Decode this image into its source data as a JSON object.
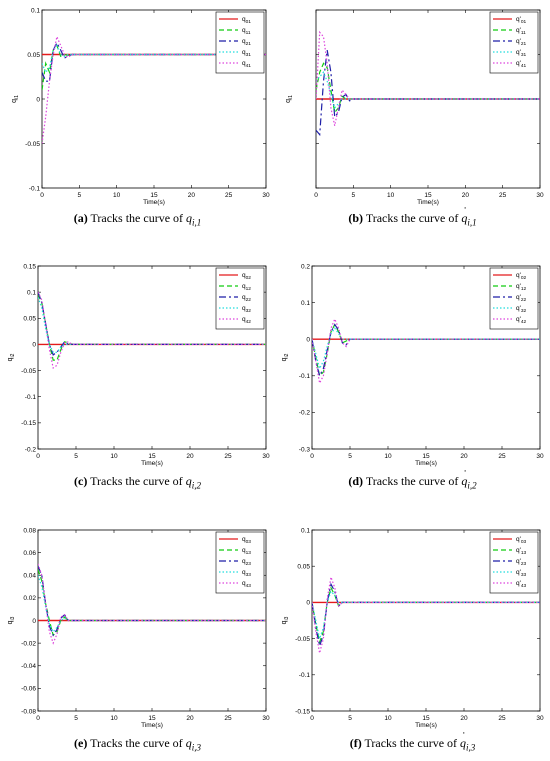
{
  "figure": {
    "panels": [
      {
        "letter": "(a)",
        "caption_text": "Tracks the curve of",
        "caption_math": "q",
        "caption_sub": "i,1",
        "caption_dot": false
      },
      {
        "letter": "(b)",
        "caption_text": "Tracks the curve of",
        "caption_math": "q",
        "caption_sub": "i,1",
        "caption_dot": true
      },
      {
        "letter": "(c)",
        "caption_text": "Tracks the curve of",
        "caption_math": "q",
        "caption_sub": "i,2",
        "caption_dot": false
      },
      {
        "letter": "(d)",
        "caption_text": "Tracks the curve of",
        "caption_math": "q",
        "caption_sub": "i,2",
        "caption_dot": true
      },
      {
        "letter": "(e)",
        "caption_text": "Tracks the curve of",
        "caption_math": "q",
        "caption_sub": "i,3",
        "caption_dot": false
      },
      {
        "letter": "(f)",
        "caption_text": "Tracks the curve of",
        "caption_math": "q",
        "caption_sub": "i,3",
        "caption_dot": true
      }
    ]
  },
  "chart_data": [
    {
      "type": "line",
      "xlabel": "Time(s)",
      "ylabel": "q_i1",
      "xlim": [
        0,
        30
      ],
      "ylim": [
        -0.1,
        0.1
      ],
      "xticks": [
        "0",
        "5",
        "10",
        "15",
        "20",
        "25",
        "30"
      ],
      "yticks": [
        "-0.1",
        "-0.05",
        "0",
        "0.05",
        "0.1"
      ],
      "ytick_values": [
        -0.1,
        -0.05,
        0,
        0.05,
        0.1
      ],
      "legend_position": "top-right",
      "grid": false,
      "series": [
        {
          "name": "q_01",
          "color": "#e41a1c",
          "dash": "solid",
          "x": [
            0,
            30
          ],
          "y": [
            0.05,
            0.05
          ]
        },
        {
          "name": "q_11",
          "color": "#11cc11",
          "dash": "dashed",
          "x": [
            0,
            0.5,
            1,
            1.5,
            2,
            2.5,
            3,
            3.5,
            4,
            30
          ],
          "y": [
            0.01,
            0.04,
            0.03,
            0.055,
            0.06,
            0.048,
            0.05,
            0.049,
            0.05,
            0.05
          ]
        },
        {
          "name": "q_21",
          "color": "#1f1fa8",
          "dash": "dashdot",
          "x": [
            0,
            0.5,
            1,
            1.5,
            2,
            2.5,
            3,
            3.5,
            4,
            30
          ],
          "y": [
            0.03,
            0.02,
            0.02,
            0.055,
            0.063,
            0.055,
            0.046,
            0.048,
            0.05,
            0.05
          ]
        },
        {
          "name": "q_31",
          "color": "#22dddd",
          "dash": "dotted",
          "x": [
            0,
            0.5,
            1,
            1.5,
            2,
            2.5,
            3,
            3.5,
            4,
            30
          ],
          "y": [
            0.04,
            0.03,
            0.035,
            0.055,
            0.06,
            0.05,
            0.048,
            0.05,
            0.05,
            0.05
          ]
        },
        {
          "name": "q_41",
          "color": "#dd44dd",
          "dash": "dotted",
          "x": [
            0,
            0.5,
            1,
            1.5,
            2,
            2.5,
            3,
            3.5,
            4,
            30
          ],
          "y": [
            -0.05,
            -0.02,
            0.02,
            0.05,
            0.07,
            0.06,
            0.05,
            0.047,
            0.05,
            0.05
          ]
        }
      ]
    },
    {
      "type": "line",
      "xlabel": "Time(s)",
      "ylabel": "q_i1",
      "xlim": [
        0,
        30
      ],
      "ylim": [
        -0.1,
        0.1
      ],
      "xticks": [
        "0",
        "5",
        "10",
        "15",
        "20",
        "25",
        "30"
      ],
      "yticks": [],
      "ytick_values": [
        -0.1,
        -0.05,
        0,
        0.05,
        0.1
      ],
      "legend_position": "top-right",
      "grid": false,
      "series": [
        {
          "name": "q'_01",
          "color": "#e41a1c",
          "dash": "solid",
          "x": [
            0,
            30
          ],
          "y": [
            0,
            0
          ]
        },
        {
          "name": "q'_11",
          "color": "#11cc11",
          "dash": "dashed",
          "x": [
            0,
            0.5,
            1,
            1.5,
            2,
            2.5,
            3,
            3.5,
            4,
            5,
            30
          ],
          "y": [
            0.01,
            0.03,
            0.04,
            0.035,
            0.01,
            -0.015,
            -0.01,
            0.003,
            0,
            0,
            0
          ]
        },
        {
          "name": "q'_21",
          "color": "#1f1fa8",
          "dash": "dashdot",
          "x": [
            0,
            0.5,
            1,
            1.5,
            2,
            2.5,
            3,
            3.5,
            4,
            4.5,
            5,
            30
          ],
          "y": [
            -0.035,
            -0.04,
            0.02,
            0.055,
            0.03,
            -0.02,
            -0.015,
            0.002,
            0.005,
            -0.002,
            0,
            0
          ]
        },
        {
          "name": "q'_31",
          "color": "#22dddd",
          "dash": "dotted",
          "x": [
            0,
            0.5,
            1,
            1.5,
            2,
            2.5,
            3,
            3.5,
            4,
            30
          ],
          "y": [
            0.02,
            0.025,
            0.03,
            0.02,
            0.005,
            -0.01,
            -0.005,
            0,
            0,
            0
          ]
        },
        {
          "name": "q'_41",
          "color": "#dd44dd",
          "dash": "dotted",
          "x": [
            0,
            0.5,
            1,
            1.5,
            2,
            2.5,
            3,
            3.5,
            4,
            4.5,
            30
          ],
          "y": [
            0,
            0.075,
            0.07,
            0.04,
            -0.01,
            -0.03,
            -0.01,
            0.01,
            0.005,
            0,
            0
          ]
        }
      ]
    },
    {
      "type": "line",
      "xlabel": "Time(s)",
      "ylabel": "q_i2",
      "xlim": [
        0,
        30
      ],
      "ylim": [
        -0.2,
        0.15
      ],
      "xticks": [
        "0",
        "5",
        "10",
        "15",
        "20",
        "25",
        "30"
      ],
      "yticks": [
        "-0.2",
        "-0.15",
        "-0.1",
        "-0.05",
        "0",
        "0.05",
        "0.1",
        "0.15"
      ],
      "ytick_values": [
        -0.2,
        -0.15,
        -0.1,
        -0.05,
        0,
        0.05,
        0.1,
        0.15
      ],
      "legend_position": "top-right",
      "grid": false,
      "series": [
        {
          "name": "q_02",
          "color": "#e41a1c",
          "dash": "solid",
          "x": [
            0,
            30
          ],
          "y": [
            0,
            0
          ]
        },
        {
          "name": "q_12",
          "color": "#11cc11",
          "dash": "dashed",
          "x": [
            0,
            0.5,
            1,
            1.5,
            2,
            2.5,
            3,
            3.5,
            4,
            4.5,
            30
          ],
          "y": [
            0.095,
            0.08,
            0.04,
            0,
            -0.03,
            -0.03,
            -0.01,
            0.005,
            0.003,
            0,
            0
          ]
        },
        {
          "name": "q_22",
          "color": "#1f1fa8",
          "dash": "dashdot",
          "x": [
            0,
            0.5,
            1,
            1.5,
            2,
            2.5,
            3,
            3.5,
            4,
            4.5,
            30
          ],
          "y": [
            0.1,
            0.08,
            0.04,
            0,
            -0.02,
            -0.015,
            -0.005,
            0.005,
            0,
            0,
            0
          ]
        },
        {
          "name": "q_32",
          "color": "#22dddd",
          "dash": "dotted",
          "x": [
            0,
            0.5,
            1,
            1.5,
            2,
            2.5,
            3,
            3.5,
            4,
            30
          ],
          "y": [
            0.09,
            0.07,
            0.03,
            0,
            -0.015,
            -0.015,
            -0.005,
            0,
            0,
            0
          ]
        },
        {
          "name": "q_42",
          "color": "#dd44dd",
          "dash": "dotted",
          "x": [
            0,
            0.5,
            1,
            1.5,
            2,
            2.5,
            3,
            3.5,
            4,
            4.5,
            30
          ],
          "y": [
            0.1,
            0.085,
            0.04,
            -0.01,
            -0.045,
            -0.04,
            -0.015,
            0.003,
            0.005,
            0,
            0
          ]
        }
      ]
    },
    {
      "type": "line",
      "xlabel": "Time(s)",
      "ylabel": "q_i2",
      "xlim": [
        0,
        30
      ],
      "ylim": [
        -0.3,
        0.2
      ],
      "xticks": [
        "0",
        "5",
        "10",
        "15",
        "20",
        "25",
        "30"
      ],
      "yticks": [
        "-0.3",
        "-0.2",
        "-0.1",
        "0",
        "0.1",
        "0.2"
      ],
      "ytick_values": [
        -0.3,
        -0.2,
        -0.1,
        0,
        0.1,
        0.2
      ],
      "legend_position": "top-right",
      "grid": false,
      "series": [
        {
          "name": "q'_02",
          "color": "#e41a1c",
          "dash": "solid",
          "x": [
            0,
            30
          ],
          "y": [
            0,
            0
          ]
        },
        {
          "name": "q'_12",
          "color": "#11cc11",
          "dash": "dashed",
          "x": [
            0,
            0.5,
            1,
            1.5,
            2,
            2.5,
            3,
            3.5,
            4,
            4.5,
            5,
            30
          ],
          "y": [
            0,
            -0.05,
            -0.1,
            -0.09,
            -0.04,
            0.02,
            0.04,
            0.02,
            -0.01,
            -0.005,
            0,
            0
          ]
        },
        {
          "name": "q'_22",
          "color": "#1f1fa8",
          "dash": "dashdot",
          "x": [
            0,
            0.5,
            1,
            1.5,
            2,
            2.5,
            3,
            3.5,
            4,
            4.5,
            5,
            30
          ],
          "y": [
            0,
            -0.06,
            -0.1,
            -0.08,
            -0.03,
            0.02,
            0.04,
            0.025,
            -0.01,
            -0.015,
            0,
            0
          ]
        },
        {
          "name": "q'_32",
          "color": "#22dddd",
          "dash": "dotted",
          "x": [
            0,
            0.5,
            1,
            1.5,
            2,
            2.5,
            3,
            3.5,
            4,
            30
          ],
          "y": [
            0,
            -0.04,
            -0.08,
            -0.06,
            -0.02,
            0.015,
            0.03,
            0.015,
            0,
            0
          ]
        },
        {
          "name": "q'_42",
          "color": "#dd44dd",
          "dash": "dotted",
          "x": [
            0,
            0.5,
            1,
            1.5,
            2,
            2.5,
            3,
            3.5,
            4,
            4.5,
            5,
            30
          ],
          "y": [
            0,
            -0.06,
            -0.12,
            -0.1,
            -0.04,
            0.03,
            0.055,
            0.03,
            -0.01,
            -0.02,
            0,
            0
          ]
        }
      ]
    },
    {
      "type": "line",
      "xlabel": "Time(s)",
      "ylabel": "q_i3",
      "xlim": [
        0,
        30
      ],
      "ylim": [
        -0.08,
        0.08
      ],
      "xticks": [
        "0",
        "5",
        "10",
        "15",
        "20",
        "25",
        "30"
      ],
      "yticks": [
        "-0.08",
        "-0.06",
        "-0.04",
        "-0.02",
        "0",
        "0.02",
        "0.04",
        "0.06",
        "0.08"
      ],
      "ytick_values": [
        -0.08,
        -0.06,
        -0.04,
        -0.02,
        0,
        0.02,
        0.04,
        0.06,
        0.08
      ],
      "legend_position": "top-right",
      "grid": false,
      "series": [
        {
          "name": "q_03",
          "color": "#e41a1c",
          "dash": "solid",
          "x": [
            0,
            30
          ],
          "y": [
            0,
            0
          ]
        },
        {
          "name": "q_13",
          "color": "#11cc11",
          "dash": "dashed",
          "x": [
            0,
            0.5,
            1,
            1.5,
            2,
            2.5,
            3,
            3.5,
            4,
            30
          ],
          "y": [
            0.045,
            0.035,
            0.015,
            0,
            -0.013,
            -0.01,
            0,
            0.003,
            0,
            0
          ]
        },
        {
          "name": "q_23",
          "color": "#1f1fa8",
          "dash": "dashdot",
          "x": [
            0,
            0.5,
            1,
            1.5,
            2,
            2.5,
            3,
            3.5,
            4,
            30
          ],
          "y": [
            0.048,
            0.04,
            0.015,
            -0.005,
            -0.013,
            -0.008,
            0.002,
            0.005,
            0,
            0
          ]
        },
        {
          "name": "q_33",
          "color": "#22dddd",
          "dash": "dotted",
          "x": [
            0,
            0.5,
            1,
            1.5,
            2,
            2.5,
            3,
            3.5,
            4,
            30
          ],
          "y": [
            0.04,
            0.03,
            0.012,
            -0.003,
            -0.01,
            -0.006,
            0,
            0.002,
            0,
            0
          ]
        },
        {
          "name": "q_43",
          "color": "#dd44dd",
          "dash": "dotted",
          "x": [
            0,
            0.5,
            1,
            1.5,
            2,
            2.5,
            3,
            3.5,
            4,
            30
          ],
          "y": [
            0.05,
            0.04,
            0.015,
            -0.01,
            -0.02,
            -0.012,
            0.003,
            0.005,
            0,
            0
          ]
        }
      ]
    },
    {
      "type": "line",
      "xlabel": "Time(s)",
      "ylabel": "q_i3",
      "xlim": [
        0,
        30
      ],
      "ylim": [
        -0.15,
        0.1
      ],
      "xticks": [
        "0",
        "5",
        "10",
        "15",
        "20",
        "25",
        "30"
      ],
      "yticks": [
        "-0.15",
        "-0.1",
        "-0.05",
        "0",
        "0.05",
        "0.1"
      ],
      "ytick_values": [
        -0.15,
        -0.1,
        -0.05,
        0,
        0.05,
        0.1
      ],
      "legend_position": "top-right",
      "grid": false,
      "series": [
        {
          "name": "q'_03",
          "color": "#e41a1c",
          "dash": "solid",
          "x": [
            0,
            30
          ],
          "y": [
            0,
            0
          ]
        },
        {
          "name": "q'_13",
          "color": "#11cc11",
          "dash": "dashed",
          "x": [
            0,
            0.5,
            1,
            1.5,
            2,
            2.5,
            3,
            3.5,
            4,
            30
          ],
          "y": [
            0,
            -0.03,
            -0.055,
            -0.04,
            0,
            0.02,
            0.01,
            -0.005,
            0,
            0
          ]
        },
        {
          "name": "q'_23",
          "color": "#1f1fa8",
          "dash": "dashdot",
          "x": [
            0,
            0.5,
            1,
            1.5,
            2,
            2.5,
            3,
            3.5,
            4,
            30
          ],
          "y": [
            0,
            -0.035,
            -0.06,
            -0.045,
            0,
            0.025,
            0.015,
            -0.005,
            0,
            0
          ]
        },
        {
          "name": "q'_33",
          "color": "#22dddd",
          "dash": "dotted",
          "x": [
            0,
            0.5,
            1,
            1.5,
            2,
            2.5,
            3,
            3.5,
            4,
            30
          ],
          "y": [
            0,
            -0.025,
            -0.05,
            -0.035,
            0,
            0.015,
            0.01,
            0,
            0,
            0
          ]
        },
        {
          "name": "q'_43",
          "color": "#dd44dd",
          "dash": "dotted",
          "x": [
            0,
            0.5,
            1,
            1.5,
            2,
            2.5,
            3,
            3.5,
            4,
            30
          ],
          "y": [
            0,
            -0.04,
            -0.07,
            -0.05,
            0.005,
            0.035,
            0.02,
            -0.005,
            0,
            0
          ]
        }
      ]
    }
  ]
}
